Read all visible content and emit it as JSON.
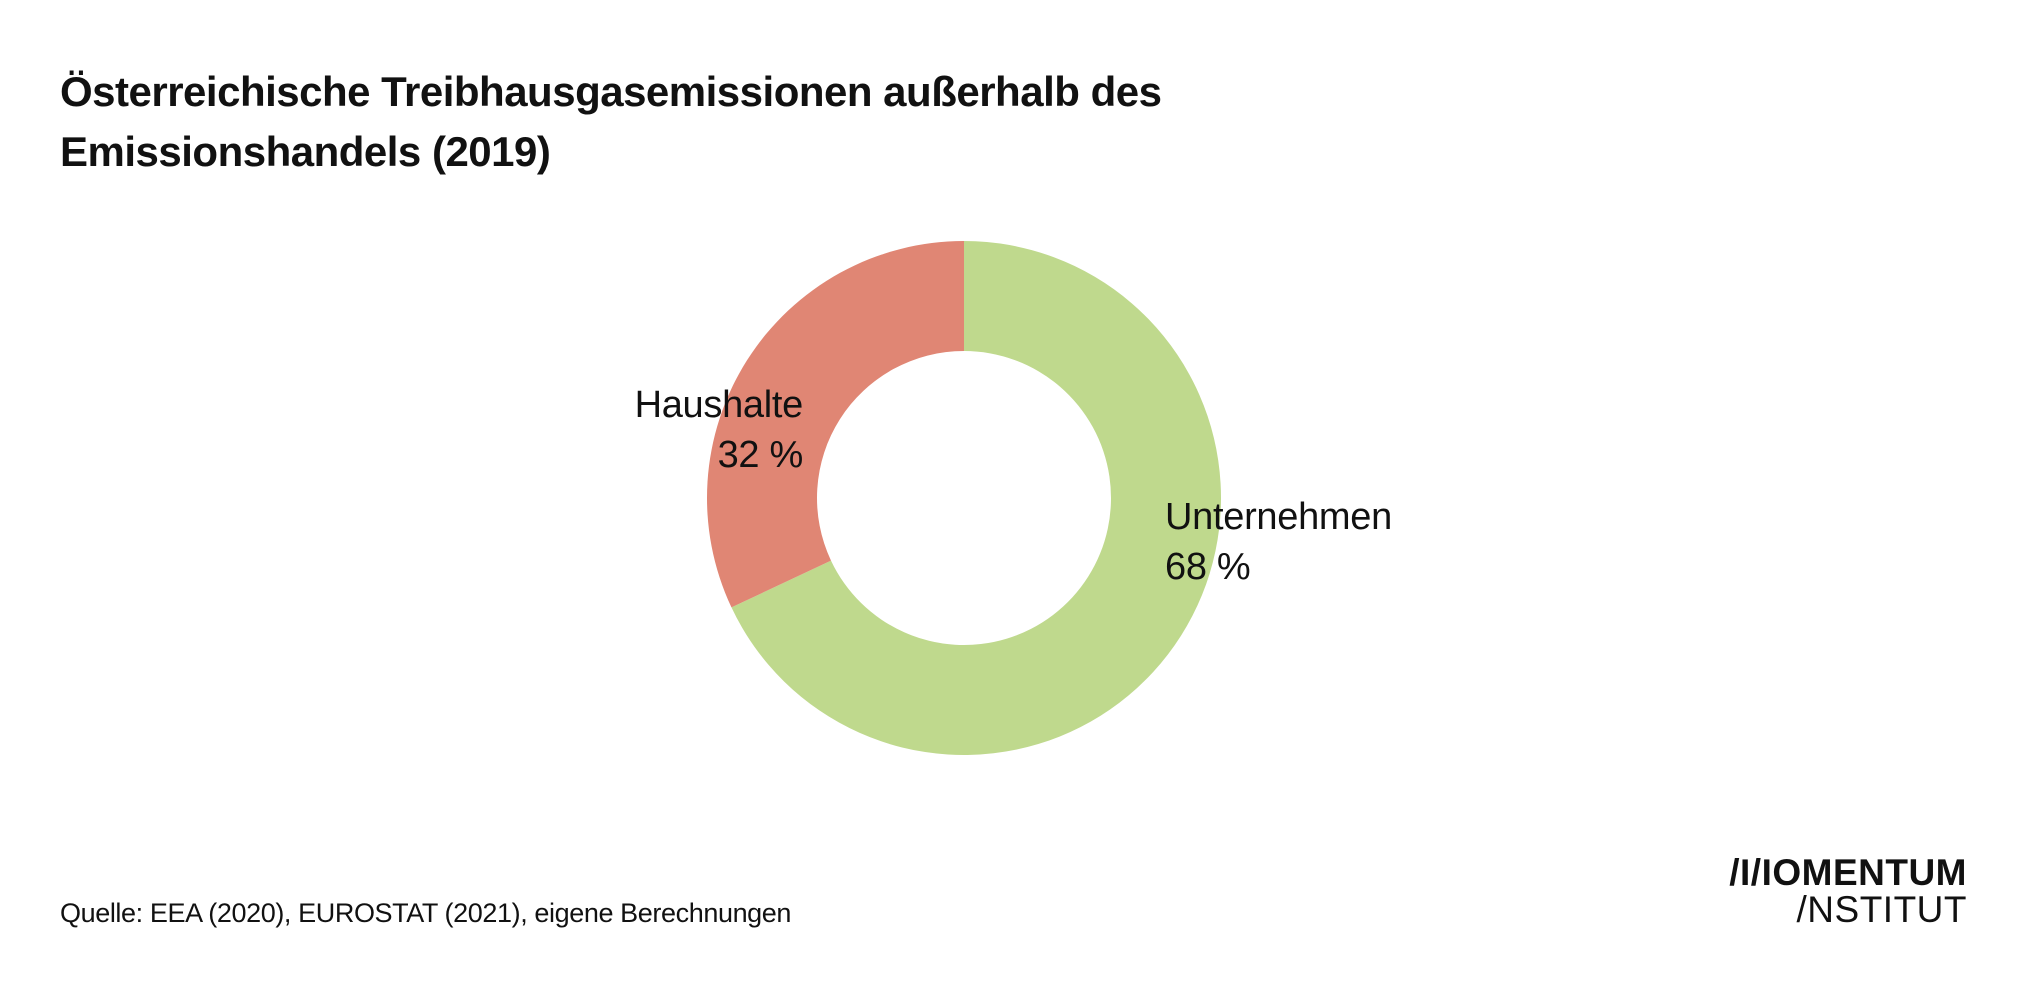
{
  "title": "Österreichische Treibhausgasemissionen außerhalb des Emissionshandels (2019)",
  "chart_data": {
    "type": "pie",
    "variant": "donut",
    "title": "Österreichische Treibhausgasemissionen außerhalb des Emissionshandels (2019)",
    "unit": "%",
    "slices": [
      {
        "name": "Unternehmen",
        "value": 68,
        "label": "68 %",
        "color": "#bfd98d"
      },
      {
        "name": "Haushalte",
        "value": 32,
        "label": "32 %",
        "color": "#e08674"
      }
    ],
    "start": "12 o'clock, clockwise"
  },
  "source": "Quelle: EEA (2020),  EUROSTAT (2021), eigene Berechnungen",
  "logo": {
    "line1": "/I/IOMENTUM",
    "line2": "/NSTITUT"
  },
  "colors": {
    "background": "#ffffff",
    "text": "#111111"
  }
}
